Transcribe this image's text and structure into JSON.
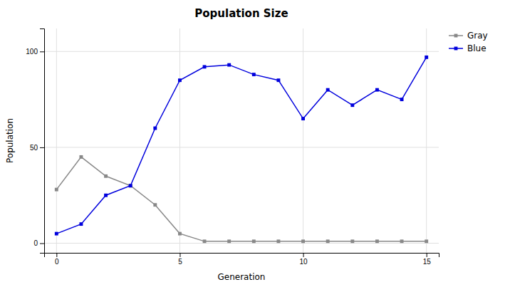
{
  "chart_data": {
    "type": "line",
    "title": "Population Size",
    "xlabel": "Generation",
    "ylabel": "Population",
    "x": [
      0,
      1,
      2,
      3,
      4,
      5,
      6,
      7,
      8,
      9,
      10,
      11,
      12,
      13,
      14,
      15
    ],
    "xlim": [
      -0.5,
      15.5
    ],
    "ylim": [
      -5,
      112
    ],
    "xticks": [
      0,
      5,
      10,
      15
    ],
    "yticks": [
      0,
      50,
      100
    ],
    "grid": true,
    "legend": "upper right",
    "series": [
      {
        "name": "Gray",
        "color": "#888888",
        "marker": "square",
        "values": [
          28,
          45,
          35,
          30,
          20,
          5,
          1,
          1,
          1,
          1,
          1,
          1,
          1,
          1,
          1,
          1
        ]
      },
      {
        "name": "Blue",
        "color": "#0000dd",
        "marker": "square",
        "values": [
          5,
          10,
          25,
          30,
          60,
          85,
          92,
          93,
          88,
          85,
          65,
          80,
          72,
          80,
          75,
          97
        ]
      }
    ]
  }
}
